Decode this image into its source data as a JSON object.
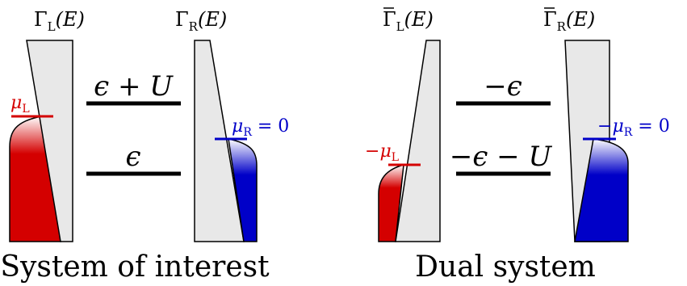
{
  "colors": {
    "reservoir_fill": "#e8e8e8",
    "outline": "#000000",
    "left_lead": "#d40000",
    "right_lead": "#0000c8",
    "level": "#000000"
  },
  "left_panel": {
    "caption": "System of interest",
    "gamma_left": {
      "sym": "Γ",
      "sub": "L",
      "arg": "(E)"
    },
    "gamma_right": {
      "sym": "Γ",
      "sub": "R",
      "arg": "(E)"
    },
    "mu_left": {
      "prefix": "",
      "sym": "μ",
      "sub": "L",
      "suffix": ""
    },
    "mu_right": {
      "prefix": "",
      "sym": "μ",
      "sub": "R",
      "suffix": " = 0"
    },
    "upper_level": "ϵ + U",
    "lower_level": "ϵ"
  },
  "right_panel": {
    "caption": "Dual system",
    "gamma_left": {
      "sym": "Γ",
      "sub": "L",
      "arg": "(E)"
    },
    "gamma_right": {
      "sym": "Γ",
      "sub": "R",
      "arg": "(E)"
    },
    "mu_left": {
      "prefix": "−",
      "sym": "μ",
      "sub": "L",
      "suffix": ""
    },
    "mu_right": {
      "prefix": "−",
      "sym": "μ",
      "sub": "R",
      "suffix": " = 0"
    },
    "upper_level": "−ϵ",
    "lower_level": "−ϵ − U"
  }
}
